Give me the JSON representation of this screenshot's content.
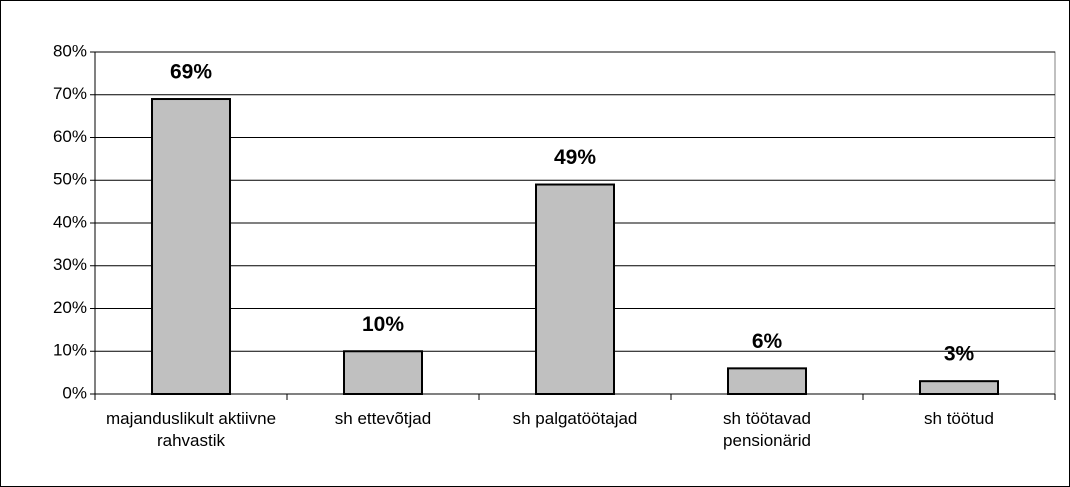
{
  "chart_data": {
    "type": "bar",
    "categories": [
      "majanduslikult aktiivne rahvastik",
      "sh ettevõtjad",
      "sh palgatöötajad",
      "sh töötavad pensionärid",
      "sh töötud"
    ],
    "values": [
      69,
      10,
      49,
      6,
      3
    ],
    "value_labels": [
      "69%",
      "10%",
      "49%",
      "6%",
      "3%"
    ],
    "color": "#c0c0c0",
    "ylim": [
      0,
      80
    ],
    "yticks": [
      {
        "value": 0,
        "label": "0%"
      },
      {
        "value": 10,
        "label": "10%"
      },
      {
        "value": 20,
        "label": "20%"
      },
      {
        "value": 30,
        "label": "30%"
      },
      {
        "value": 40,
        "label": "40%"
      },
      {
        "value": 50,
        "label": "50%"
      },
      {
        "value": 60,
        "label": "60%"
      },
      {
        "value": 70,
        "label": "70%"
      },
      {
        "value": 80,
        "label": "80%"
      }
    ],
    "grid": true
  }
}
